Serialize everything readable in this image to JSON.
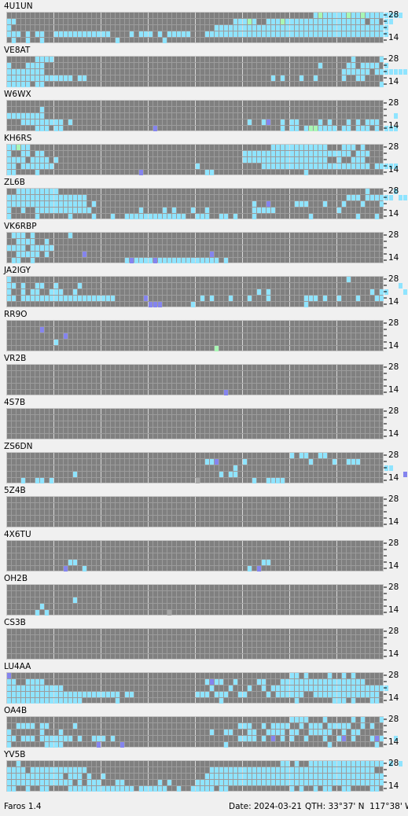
{
  "band_labels": {
    "top": "28",
    "bottom": "14"
  },
  "cell_colors": {
    "c": "#8fe4ff",
    "g": "#a8f7b4",
    "b": "#8484ee",
    "x": "#a4a4a4"
  },
  "panels": [
    {
      "name": "4U1UN",
      "rows": [
        ".................................................................cgcccccgccgcccccccc...c",
        "cc..............................................cccgc..cccgccccccccccccccccc.cc.cc.",
        "c...........................................ccccccccccccccccccccccccccccccccccccc.",
        "ccc.c.cc..cccccccccccc....c.ccc.c.ccccc...ccccccccccccccccccccccccccccccccccccccc",
        ".c..c..c...............c.........c........................................................c"
      ]
    },
    {
      "name": "VE8AT",
      "rows": [
        "......cccc...............................................................c.....c",
        "c...cccc..........................................................c.....cc.cccc.c",
        "cccccccc...............................................................cccccc.cccccccccc",
        "cccccccccccccc.cc.......................................c.c...c..c.....c..cc........",
        "ccccc.cc.......................................................................c"
      ]
    },
    {
      "name": "W6WX",
      "rows": [
        "",
        ".......c",
        "cccccccc..........................................................................c",
        "...ccccccccc.c.....................................c..cb..c.cc....c.c...c.c.ccc",
        "......ccc.cc...................b..........................c.cc.cggcccc.cc.ccc.c.ccc."
      ]
    },
    {
      "name": "KH6RS",
      "rows": [
        "ccgcc...................................................cccccccccccc...ccc.c..",
        "c..cc.cc..........................................ccccccccccccccccccccccc.ccc.",
        "cccc.cccc.c.......................................cccccccccccccccccc..c..ccc...",
        "cc.ccccccc..............................c.............ccccccccccccccccccccccc.ccccc",
        "cc....c.....................b.............cc...................c........."
      ]
    },
    {
      "name": "ZL6B",
      "rows": [
        "..ccccccccc.................................................................c.....c...c.",
        "ccccccccccccccccc.......................................................ccc.cccccc.ccccccc",
        "ccccccccccccccccc.c.................................c..b.....ccc...c...c...c...c",
        "c..c..cccccccccccc..........c....c.c...c..c.........ccccc.............c.........",
        "c.....c......c....c...c..ccccccccccccc..ccc..cc.c...c...........c.........c...c.."
      ]
    },
    {
      "name": "VK6RBP",
      "rows": [
        ".ccc.c.......c",
        "..cccc..c.",
        "cccc.ccccc",
        "..ccccc.c.......b..........................b",
        ".cc..c...................cbccccbccccccccccccc.c..."
      ]
    },
    {
      "name": "JA2IGY",
      "rows": [
        "c.......................................................................c",
        "cc.c..cc..c....c...................................................................c...cc..",
        "c..c.cc..ccc..c......................................c.c.....................c.cc...c.",
        "cc.cccccccccccccccccccc......b...........c.c...c...c...c.......ccc.c..c...c...cc.",
        "..............................bbb......c.......................c......"
      ]
    },
    {
      "name": "RR9O",
      "rows": [
        "",
        ".......b",
        "............b",
        "..........c",
        "............................................g"
      ]
    },
    {
      "name": "VR2B",
      "rows": [
        "",
        "",
        "",
        "",
        "..............................................b"
      ]
    },
    {
      "name": "4S7B",
      "rows": [
        "",
        "",
        "",
        "",
        ""
      ]
    },
    {
      "name": "ZS6DN",
      "rows": [
        "............................................................c.cc..cc..",
        "..........................................ccb.....c.............c....c..ccc.......",
        "................................................c...............................cc.......c",
        "..............c..............................c.cc...................................b",
        "...c..cc.c..............................x...........c..cccc"
      ]
    },
    {
      "name": "5Z4B",
      "rows": [
        "",
        "",
        "",
        "",
        ""
      ]
    },
    {
      "name": "4X6TU",
      "rows": [
        "",
        "",
        "",
        ".............cc.......................................cc",
        "............b...c..................................c.b"
      ]
    },
    {
      "name": "OH2B",
      "rows": [
        "",
        "",
        "..............c",
        ".......c",
        "......c.c.........................x"
      ]
    },
    {
      "name": "CS3B",
      "rows": [
        "",
        "",
        "",
        "",
        ""
      ]
    },
    {
      "name": "LU4AA",
      "rows": [
        "b...........................................................cc.c....c..c.c..",
        "cc..cccc..................................cbcc..c....cc...cccccccccccccccccc",
        "cccccccccccc...............................c...c...c..c.ccccccccccccccccccccccccc",
        "cccccccccccccccccccccccc.cc.............ccc.ccc..cc....c.cccccc..cccccccccccccc",
        "cccccccccccccccc.......c.....................c...............c.......ccc.c...cc"
      ]
    },
    {
      "name": "OA4B",
      "rows": [
        "............................................................cccc...c.....c.c...c",
        "..cccc.cc.....c..................................ccc..c.cccc..c.ccc.ccccc..c.c",
        "c......c...c...............................c..cc...cc..cccc.cc..ccccc..c.cc...",
        "cc.ccc.ccccccc.c..ccc.c..........................cccc.c.b.c.c..c...c..cb.c...cbc..c..c",
        "c.......cccc.......b....b.....................c.....................c.........c......."
      ]
    },
    {
      "name": "YV5B",
      "rows": [
        "..c.......................................................cc.c..cccccccccccccccc.c.c",
        "cccc.cccccccccccc..........................ccccccccccccccccccccccccccccccccccc",
        "cccccccccccc.ccc.c..c.....................cccccccccccccccccccccccccccccccccccccc",
        "cccccccccccccc.c.ccc...cc.......c.c.....cccccccccccccccccccccccccccccccccccccccc",
        "cc..c..cc....cccccccccccccc.cccccc..c..ccccc.cc.............c.c..c.cc..cc....cc.."
      ]
    }
  ],
  "status": {
    "app": "Faros 1.4",
    "date": "Date: 2024-03-21",
    "qth": "QTH: 33°37' N  117°38' W"
  }
}
